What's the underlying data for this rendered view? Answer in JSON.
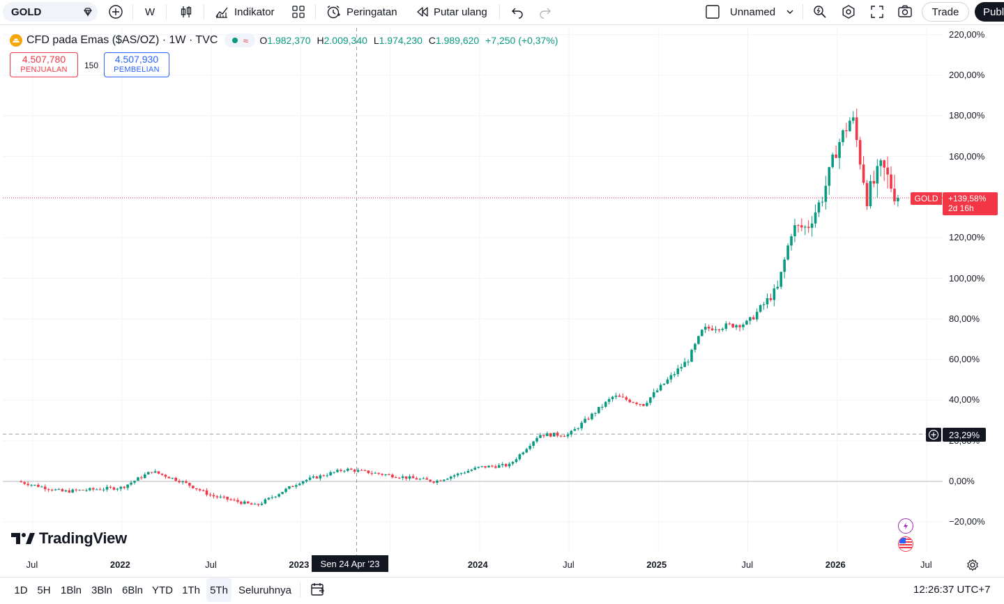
{
  "toolbar": {
    "symbol": "GOLD",
    "interval": "W",
    "indicators_label": "Indikator",
    "alerts_label": "Peringatan",
    "replay_label": "Putar ulang",
    "layout_name": "Unnamed",
    "trade_label": "Trade",
    "publish_label": "Publ"
  },
  "legend": {
    "title": "CFD pada Emas ($AS/OZ) · 1W · TVC",
    "o_label": "O",
    "o_value": "1.982,370",
    "h_label": "H",
    "h_value": "2.009,340",
    "l_label": "L",
    "l_value": "1.974,230",
    "c_label": "C",
    "c_value": "1.989,620",
    "change": "+7,250 (+0,37%)"
  },
  "trade": {
    "sell_price": "4.507,780",
    "sell_label": "PENJUALAN",
    "spread": "150",
    "buy_price": "4.507,930",
    "buy_label": "PEMBELIAN"
  },
  "price_axis": {
    "labels": [
      "220,00%",
      "200,00%",
      "180,00%",
      "160,00%",
      "140,00%",
      "120,00%",
      "100,00%",
      "80,00%",
      "60,00%",
      "40,00%",
      "20,00%",
      "0,00%",
      "−20,00%"
    ],
    "current_symbol": "GOLD",
    "current_pct": "+139,58%",
    "countdown": "2d 16h",
    "crosshair_pct": "23,29%"
  },
  "time_axis": {
    "labels": [
      {
        "text": "Jul",
        "bold": false
      },
      {
        "text": "2022",
        "bold": true
      },
      {
        "text": "Jul",
        "bold": false
      },
      {
        "text": "2023",
        "bold": true
      },
      {
        "text": "2024",
        "bold": true
      },
      {
        "text": "Jul",
        "bold": false
      },
      {
        "text": "2025",
        "bold": true
      },
      {
        "text": "Jul",
        "bold": false
      },
      {
        "text": "2026",
        "bold": true
      },
      {
        "text": "Jul",
        "bold": false
      }
    ],
    "crosshair_date": "Sen 24 Apr '23"
  },
  "branding": {
    "logo_text": "TradingView"
  },
  "bottom_bar": {
    "ranges": [
      "1D",
      "5H",
      "1Bln",
      "3Bln",
      "6Bln",
      "YTD",
      "1Th",
      "5Th",
      "Seluruhnya"
    ],
    "active_range": "5Th",
    "clock": "12:26:37 UTC+7"
  },
  "colors": {
    "up": "#089981",
    "down": "#f23645",
    "crosshair": "#9598a1",
    "grid": "#f0f3fa"
  },
  "chart_data": {
    "type": "candlestick",
    "interval": "1W",
    "y_unit": "percent",
    "ylim": [
      -25,
      225
    ],
    "x_range": [
      "2021-07",
      "2026-07"
    ],
    "approx_path": [
      {
        "date": "2021-06",
        "pct": 0
      },
      {
        "date": "2021-09",
        "pct": -5
      },
      {
        "date": "2022-01",
        "pct": -3
      },
      {
        "date": "2022-03",
        "pct": 5
      },
      {
        "date": "2022-05",
        "pct": 0
      },
      {
        "date": "2022-07",
        "pct": -7
      },
      {
        "date": "2022-10",
        "pct": -12
      },
      {
        "date": "2023-01",
        "pct": 0
      },
      {
        "date": "2023-04",
        "pct": 6
      },
      {
        "date": "2023-07",
        "pct": 3
      },
      {
        "date": "2023-10",
        "pct": 0
      },
      {
        "date": "2024-01",
        "pct": 7
      },
      {
        "date": "2024-03",
        "pct": 8
      },
      {
        "date": "2024-05",
        "pct": 23
      },
      {
        "date": "2024-07",
        "pct": 23
      },
      {
        "date": "2024-10",
        "pct": 42
      },
      {
        "date": "2024-12",
        "pct": 38
      },
      {
        "date": "2025-03",
        "pct": 60
      },
      {
        "date": "2025-04",
        "pct": 75
      },
      {
        "date": "2025-07",
        "pct": 78
      },
      {
        "date": "2025-09",
        "pct": 95
      },
      {
        "date": "2025-10",
        "pct": 125
      },
      {
        "date": "2025-11",
        "pct": 125
      },
      {
        "date": "2025-12",
        "pct": 140
      },
      {
        "date": "2026-01",
        "pct": 165
      },
      {
        "date": "2026-02",
        "pct": 180
      },
      {
        "date": "2026-03",
        "pct": 140
      },
      {
        "date": "2026-04",
        "pct": 155
      },
      {
        "date": "2026-05",
        "pct": 140
      }
    ],
    "last_pct": 139.58,
    "crosshair": {
      "date": "Sen 24 Apr '23",
      "pct": 23.29
    }
  }
}
